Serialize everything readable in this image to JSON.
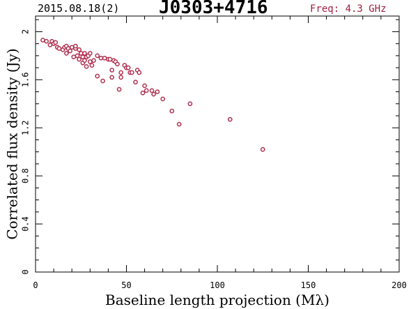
{
  "header": {
    "date": "2015.08.18(2)",
    "source": "J0303+4716",
    "frequency": "Freq: 4.3 GHz"
  },
  "colors": {
    "marker": "#b03050",
    "frequency_text": "#a02040",
    "axes": "#000000"
  },
  "chart_data": {
    "type": "scatter",
    "xlabel": "Baseline length projection (Mλ)",
    "ylabel": "Correlated flux density (Jy)",
    "xlim": [
      0,
      200
    ],
    "ylim": [
      0,
      2.13
    ],
    "x_ticks": [
      "0",
      "50",
      "100",
      "150",
      "200"
    ],
    "y_ticks": [
      "0",
      "0.4",
      "0.8",
      "1.2",
      "1.6",
      "2"
    ],
    "grid": false,
    "marker": "open-circle",
    "x": [
      4,
      6,
      8,
      9,
      10,
      11,
      12,
      13,
      15,
      16,
      17,
      17,
      18,
      19,
      20,
      21,
      22,
      22,
      23,
      24,
      24,
      25,
      26,
      26,
      27,
      27,
      28,
      28,
      29,
      30,
      30,
      31,
      32,
      34,
      34,
      36,
      37,
      38,
      40,
      41,
      42,
      42,
      43,
      44,
      45,
      46,
      47,
      47,
      49,
      50,
      51,
      52,
      53,
      55,
      56,
      57,
      59,
      60,
      61,
      64,
      65,
      67,
      70,
      75,
      79,
      85,
      107,
      125
    ],
    "y": [
      1.93,
      1.92,
      1.89,
      1.92,
      1.9,
      1.91,
      1.87,
      1.86,
      1.85,
      1.87,
      1.88,
      1.82,
      1.86,
      1.84,
      1.87,
      1.79,
      1.86,
      1.88,
      1.8,
      1.85,
      1.77,
      1.82,
      1.74,
      1.79,
      1.76,
      1.82,
      1.71,
      1.79,
      1.8,
      1.75,
      1.82,
      1.72,
      1.76,
      1.8,
      1.63,
      1.78,
      1.59,
      1.78,
      1.77,
      1.77,
      1.68,
      1.62,
      1.76,
      1.75,
      1.73,
      1.52,
      1.66,
      1.62,
      1.72,
      1.7,
      1.7,
      1.66,
      1.66,
      1.58,
      1.68,
      1.66,
      1.49,
      1.55,
      1.51,
      1.51,
      1.48,
      1.5,
      1.44,
      1.34,
      1.23,
      1.4,
      1.27,
      1.02
    ]
  }
}
